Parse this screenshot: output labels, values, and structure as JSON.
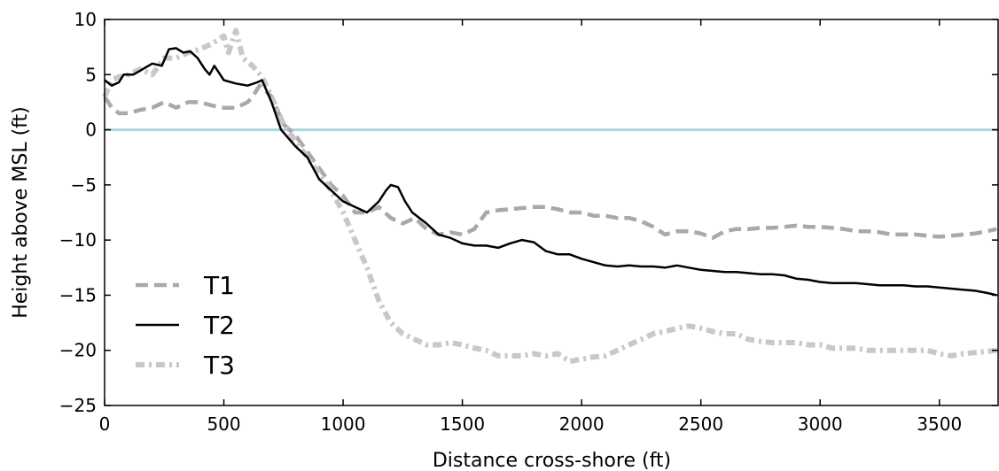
{
  "chart_data": {
    "type": "line",
    "title": "",
    "xlabel": "Distance cross-shore (ft)",
    "ylabel": "Height above MSL (ft)",
    "xlim": [
      0,
      3750
    ],
    "ylim": [
      -25,
      10
    ],
    "xticks": [
      0,
      500,
      1000,
      1500,
      2000,
      2500,
      3000,
      3500
    ],
    "yticks": [
      10,
      5,
      0,
      -5,
      -10,
      -15,
      -20,
      -25
    ],
    "xtick_labels": [
      "0",
      "500",
      "1000",
      "1500",
      "2000",
      "2500",
      "3000",
      "3500"
    ],
    "ytick_labels": [
      "10",
      "5",
      "0",
      "−5",
      "−10",
      "−15",
      "−20",
      "−25"
    ],
    "grid": false,
    "legend_position": "lower-left",
    "reference_line": {
      "y": 0,
      "color": "#a8d8e0"
    },
    "series": [
      {
        "name": "T1",
        "style": "dashed",
        "color": "#a9a9a9",
        "x": [
          0,
          30,
          60,
          100,
          150,
          200,
          250,
          300,
          350,
          400,
          450,
          500,
          550,
          600,
          620,
          650,
          700,
          750,
          800,
          850,
          900,
          950,
          1000,
          1050,
          1100,
          1150,
          1200,
          1250,
          1300,
          1350,
          1400,
          1450,
          1500,
          1550,
          1600,
          1650,
          1700,
          1750,
          1800,
          1850,
          1900,
          1950,
          2000,
          2050,
          2100,
          2150,
          2200,
          2250,
          2300,
          2350,
          2400,
          2450,
          2500,
          2550,
          2600,
          2650,
          2700,
          2750,
          2800,
          2850,
          2900,
          2950,
          3000,
          3050,
          3100,
          3150,
          3200,
          3250,
          3300,
          3350,
          3400,
          3450,
          3500,
          3550,
          3600,
          3650,
          3700,
          3740
        ],
        "y": [
          3.0,
          2.0,
          1.5,
          1.5,
          1.8,
          2.0,
          2.5,
          2.0,
          2.5,
          2.5,
          2.2,
          2.0,
          2.0,
          2.5,
          3.0,
          4.0,
          3.0,
          0.5,
          -0.5,
          -2.0,
          -3.5,
          -5.0,
          -6.0,
          -7.5,
          -7.5,
          -7.0,
          -8.0,
          -8.5,
          -8.0,
          -9.0,
          -9.5,
          -9.3,
          -9.5,
          -9.0,
          -7.5,
          -7.3,
          -7.2,
          -7.1,
          -7.0,
          -7.0,
          -7.2,
          -7.5,
          -7.5,
          -7.8,
          -7.8,
          -8.0,
          -8.0,
          -8.3,
          -8.8,
          -9.5,
          -9.2,
          -9.2,
          -9.4,
          -9.8,
          -9.2,
          -9.0,
          -9.0,
          -8.9,
          -8.9,
          -8.8,
          -8.7,
          -8.8,
          -8.8,
          -8.9,
          -9.0,
          -9.2,
          -9.2,
          -9.3,
          -9.5,
          -9.5,
          -9.5,
          -9.6,
          -9.7,
          -9.6,
          -9.5,
          -9.4,
          -9.2,
          -9.0
        ]
      },
      {
        "name": "T2",
        "style": "solid",
        "color": "#000000",
        "x": [
          0,
          30,
          60,
          80,
          120,
          160,
          200,
          240,
          270,
          300,
          330,
          360,
          390,
          420,
          440,
          460,
          500,
          550,
          600,
          640,
          660,
          700,
          740,
          780,
          800,
          850,
          900,
          950,
          1000,
          1050,
          1100,
          1150,
          1180,
          1200,
          1230,
          1260,
          1290,
          1320,
          1350,
          1400,
          1450,
          1500,
          1550,
          1600,
          1650,
          1700,
          1750,
          1800,
          1850,
          1900,
          1950,
          2000,
          2050,
          2100,
          2150,
          2200,
          2250,
          2300,
          2350,
          2400,
          2450,
          2500,
          2550,
          2600,
          2650,
          2700,
          2750,
          2800,
          2850,
          2900,
          2950,
          3000,
          3050,
          3100,
          3150,
          3200,
          3250,
          3300,
          3350,
          3400,
          3450,
          3500,
          3550,
          3600,
          3650,
          3700,
          3740
        ],
        "y": [
          4.5,
          4.0,
          4.3,
          5.0,
          5.0,
          5.5,
          6.0,
          5.8,
          7.3,
          7.4,
          7.0,
          7.1,
          6.5,
          5.5,
          5.0,
          5.8,
          4.5,
          4.2,
          4.0,
          4.3,
          4.5,
          2.5,
          0.0,
          -1.0,
          -1.5,
          -2.5,
          -4.5,
          -5.5,
          -6.5,
          -7.0,
          -7.5,
          -6.5,
          -5.5,
          -5.0,
          -5.2,
          -6.5,
          -7.5,
          -8.0,
          -8.5,
          -9.5,
          -9.8,
          -10.3,
          -10.5,
          -10.5,
          -10.7,
          -10.3,
          -10.0,
          -10.2,
          -11.0,
          -11.3,
          -11.3,
          -11.7,
          -12.0,
          -12.3,
          -12.4,
          -12.3,
          -12.4,
          -12.4,
          -12.5,
          -12.3,
          -12.5,
          -12.7,
          -12.8,
          -12.9,
          -12.9,
          -13.0,
          -13.1,
          -13.1,
          -13.2,
          -13.5,
          -13.6,
          -13.8,
          -13.9,
          -13.9,
          -13.9,
          -14.0,
          -14.1,
          -14.1,
          -14.1,
          -14.2,
          -14.2,
          -14.3,
          -14.4,
          -14.5,
          -14.6,
          -14.8,
          -15.0
        ]
      },
      {
        "name": "T3",
        "style": "dash-dot",
        "color": "#c8c8c8",
        "x": [
          0,
          30,
          60,
          100,
          150,
          200,
          250,
          300,
          350,
          400,
          450,
          500,
          520,
          550,
          580,
          620,
          660,
          700,
          750,
          800,
          850,
          900,
          950,
          1000,
          1050,
          1100,
          1150,
          1200,
          1250,
          1300,
          1350,
          1400,
          1450,
          1500,
          1550,
          1600,
          1650,
          1700,
          1750,
          1800,
          1850,
          1900,
          1950,
          2000,
          2050,
          2100,
          2150,
          2200,
          2250,
          2300,
          2350,
          2400,
          2450,
          2500,
          2550,
          2600,
          2650,
          2700,
          2750,
          2800,
          2850,
          2900,
          2950,
          3000,
          3050,
          3100,
          3150,
          3200,
          3250,
          3300,
          3350,
          3400,
          3450,
          3500,
          3550,
          3600,
          3650,
          3700,
          3740
        ],
        "y": [
          3.0,
          4.5,
          4.8,
          5.0,
          5.5,
          5.0,
          6.5,
          6.5,
          7.0,
          7.3,
          7.8,
          8.5,
          7.0,
          9.0,
          6.5,
          5.8,
          4.8,
          3.0,
          0.5,
          -1.0,
          -2.5,
          -4.0,
          -5.5,
          -7.5,
          -10.0,
          -12.5,
          -15.5,
          -17.5,
          -18.5,
          -19.0,
          -19.5,
          -19.5,
          -19.3,
          -19.5,
          -19.8,
          -20.0,
          -20.5,
          -20.5,
          -20.5,
          -20.3,
          -20.5,
          -20.3,
          -21.0,
          -20.8,
          -20.6,
          -20.5,
          -20.0,
          -19.5,
          -19.0,
          -18.5,
          -18.3,
          -18.0,
          -17.8,
          -18.0,
          -18.3,
          -18.5,
          -18.5,
          -19.0,
          -19.2,
          -19.3,
          -19.3,
          -19.3,
          -19.5,
          -19.5,
          -19.8,
          -19.8,
          -19.8,
          -20.0,
          -20.0,
          -20.0,
          -20.0,
          -20.0,
          -20.0,
          -20.3,
          -20.5,
          -20.3,
          -20.2,
          -20.1,
          -20.0
        ]
      }
    ]
  }
}
